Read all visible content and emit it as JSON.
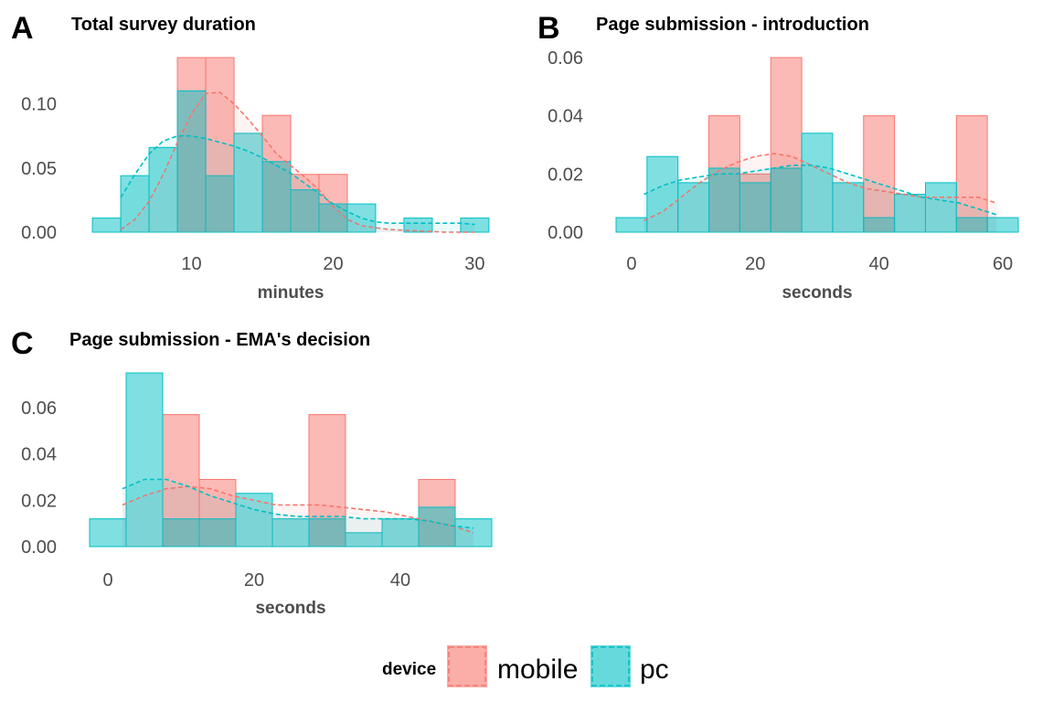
{
  "chart_data": [
    {
      "tag": "A",
      "type": "histogram",
      "title": "Total survey duration",
      "xlabel": "minutes",
      "ylabel": "",
      "xlim": [
        2.8,
        31.2
      ],
      "ylim": [
        0,
        0.136
      ],
      "xticks": [
        10,
        20,
        30
      ],
      "yticks": [
        0.0,
        0.05,
        0.1
      ],
      "ytick_labels": [
        "0.00",
        "0.05",
        "0.10"
      ],
      "grid": false,
      "bin_edges": [
        3,
        5,
        7,
        9,
        11,
        13,
        15,
        17,
        19,
        21,
        23,
        25,
        27,
        29,
        31
      ],
      "series": [
        {
          "name": "mobile",
          "values": [
            0,
            0,
            0,
            0.136,
            0.136,
            0,
            0.091,
            0.045,
            0.045,
            0,
            0,
            0,
            0,
            0
          ]
        },
        {
          "name": "pc",
          "values": [
            0.011,
            0.044,
            0.066,
            0.11,
            0.044,
            0.077,
            0.055,
            0.033,
            0.022,
            0.022,
            0,
            0.011,
            0,
            0.011
          ]
        }
      ],
      "density": [
        {
          "name": "mobile",
          "x": [
            5,
            6,
            7,
            8,
            9,
            10,
            11,
            12,
            13,
            14,
            15,
            16,
            17,
            18,
            19,
            20,
            21,
            22,
            24,
            26,
            28,
            30
          ],
          "y": [
            0.002,
            0.01,
            0.024,
            0.045,
            0.07,
            0.092,
            0.108,
            0.109,
            0.1,
            0.088,
            0.075,
            0.061,
            0.052,
            0.043,
            0.033,
            0.02,
            0.01,
            0.005,
            0.002,
            0.001,
            0,
            0
          ]
        },
        {
          "name": "pc",
          "x": [
            5,
            6,
            7,
            8,
            9,
            10,
            11,
            12,
            13,
            14,
            15,
            16,
            17,
            18,
            19,
            20,
            21,
            22,
            23,
            24,
            25,
            26,
            27,
            28,
            29,
            30
          ],
          "y": [
            0.027,
            0.045,
            0.061,
            0.071,
            0.075,
            0.075,
            0.073,
            0.07,
            0.067,
            0.063,
            0.058,
            0.052,
            0.046,
            0.038,
            0.03,
            0.022,
            0.016,
            0.011,
            0.008,
            0.007,
            0.007,
            0.007,
            0.007,
            0.007,
            0.007,
            0.006
          ]
        }
      ]
    },
    {
      "tag": "B",
      "type": "histogram",
      "title": "Page submission - introduction",
      "xlabel": "seconds",
      "ylabel": "",
      "xlim": [
        -2.5,
        62.5
      ],
      "ylim": [
        0,
        0.06
      ],
      "xticks": [
        0,
        20,
        40,
        60
      ],
      "yticks": [
        0.0,
        0.02,
        0.04,
        0.06
      ],
      "ytick_labels": [
        "0.00",
        "0.02",
        "0.04",
        "0.06"
      ],
      "grid": false,
      "bin_edges": [
        -2.5,
        2.5,
        7.5,
        12.5,
        17.5,
        22.5,
        27.5,
        32.5,
        37.5,
        42.5,
        47.5,
        52.5,
        57.5,
        62.5
      ],
      "series": [
        {
          "name": "mobile",
          "values": [
            0,
            0,
            0,
            0.04,
            0.02,
            0.06,
            0,
            0,
            0.04,
            0,
            0,
            0.04,
            0
          ]
        },
        {
          "name": "pc",
          "values": [
            0.005,
            0.026,
            0.017,
            0.022,
            0.017,
            0.022,
            0.034,
            0.017,
            0.005,
            0.013,
            0.017,
            0.005,
            0.005
          ]
        }
      ],
      "density": [
        {
          "name": "mobile",
          "x": [
            2,
            5,
            8,
            11,
            14,
            17,
            20,
            23,
            26,
            29,
            32,
            35,
            38,
            41,
            44,
            47,
            50,
            53,
            56,
            59
          ],
          "y": [
            0.004,
            0.007,
            0.012,
            0.017,
            0.021,
            0.024,
            0.026,
            0.027,
            0.026,
            0.023,
            0.02,
            0.017,
            0.015,
            0.014,
            0.013,
            0.012,
            0.012,
            0.012,
            0.012,
            0.01
          ]
        },
        {
          "name": "pc",
          "x": [
            2,
            5,
            8,
            11,
            14,
            17,
            20,
            23,
            26,
            29,
            32,
            35,
            38,
            41,
            44,
            47,
            50,
            53,
            56,
            59
          ],
          "y": [
            0.013,
            0.016,
            0.018,
            0.019,
            0.02,
            0.02,
            0.021,
            0.022,
            0.023,
            0.023,
            0.022,
            0.02,
            0.018,
            0.016,
            0.014,
            0.012,
            0.011,
            0.01,
            0.008,
            0.006
          ]
        }
      ]
    },
    {
      "tag": "C",
      "type": "histogram",
      "title": "Page submission - EMA's decision",
      "xlabel": "seconds",
      "ylabel": "",
      "xlim": [
        -2.5,
        52.5
      ],
      "ylim": [
        0,
        0.075
      ],
      "xticks": [
        0,
        20,
        40
      ],
      "yticks": [
        0.0,
        0.02,
        0.04,
        0.06
      ],
      "ytick_labels": [
        "0.00",
        "0.02",
        "0.04",
        "0.06"
      ],
      "grid": false,
      "bin_edges": [
        -2.5,
        2.5,
        7.5,
        12.5,
        17.5,
        22.5,
        27.5,
        32.5,
        37.5,
        42.5,
        47.5,
        52.5
      ],
      "series": [
        {
          "name": "mobile",
          "values": [
            0,
            0,
            0.057,
            0.029,
            0,
            0,
            0.057,
            0,
            0,
            0.029,
            0
          ]
        },
        {
          "name": "pc",
          "values": [
            0.012,
            0.075,
            0.012,
            0.012,
            0.023,
            0.012,
            0.012,
            0.006,
            0.012,
            0.017,
            0.012
          ]
        }
      ],
      "density": [
        {
          "name": "mobile",
          "x": [
            2,
            5,
            8,
            11,
            14,
            17,
            20,
            23,
            26,
            29,
            32,
            35,
            38,
            41,
            44,
            47,
            50
          ],
          "y": [
            0.018,
            0.022,
            0.025,
            0.026,
            0.025,
            0.022,
            0.02,
            0.018,
            0.018,
            0.018,
            0.017,
            0.016,
            0.015,
            0.013,
            0.011,
            0.009,
            0.006
          ]
        },
        {
          "name": "pc",
          "x": [
            2,
            5,
            8,
            11,
            14,
            17,
            20,
            23,
            26,
            29,
            32,
            35,
            38,
            41,
            44,
            47,
            50
          ],
          "y": [
            0.025,
            0.029,
            0.029,
            0.026,
            0.022,
            0.019,
            0.016,
            0.014,
            0.013,
            0.013,
            0.013,
            0.012,
            0.012,
            0.012,
            0.011,
            0.009,
            0.008
          ]
        }
      ]
    }
  ],
  "legend": {
    "title": "device",
    "placement": "bottom",
    "items": [
      {
        "name": "mobile",
        "label": "mobile",
        "fill": "#F8766D",
        "line": "#F8766D"
      },
      {
        "name": "pc",
        "label": "pc",
        "fill": "#00BFC4",
        "line": "#00BFC4"
      }
    ]
  },
  "colors": {
    "mobile": "#F8766D",
    "pc": "#00BFC4",
    "text": "#4d4d4d"
  }
}
